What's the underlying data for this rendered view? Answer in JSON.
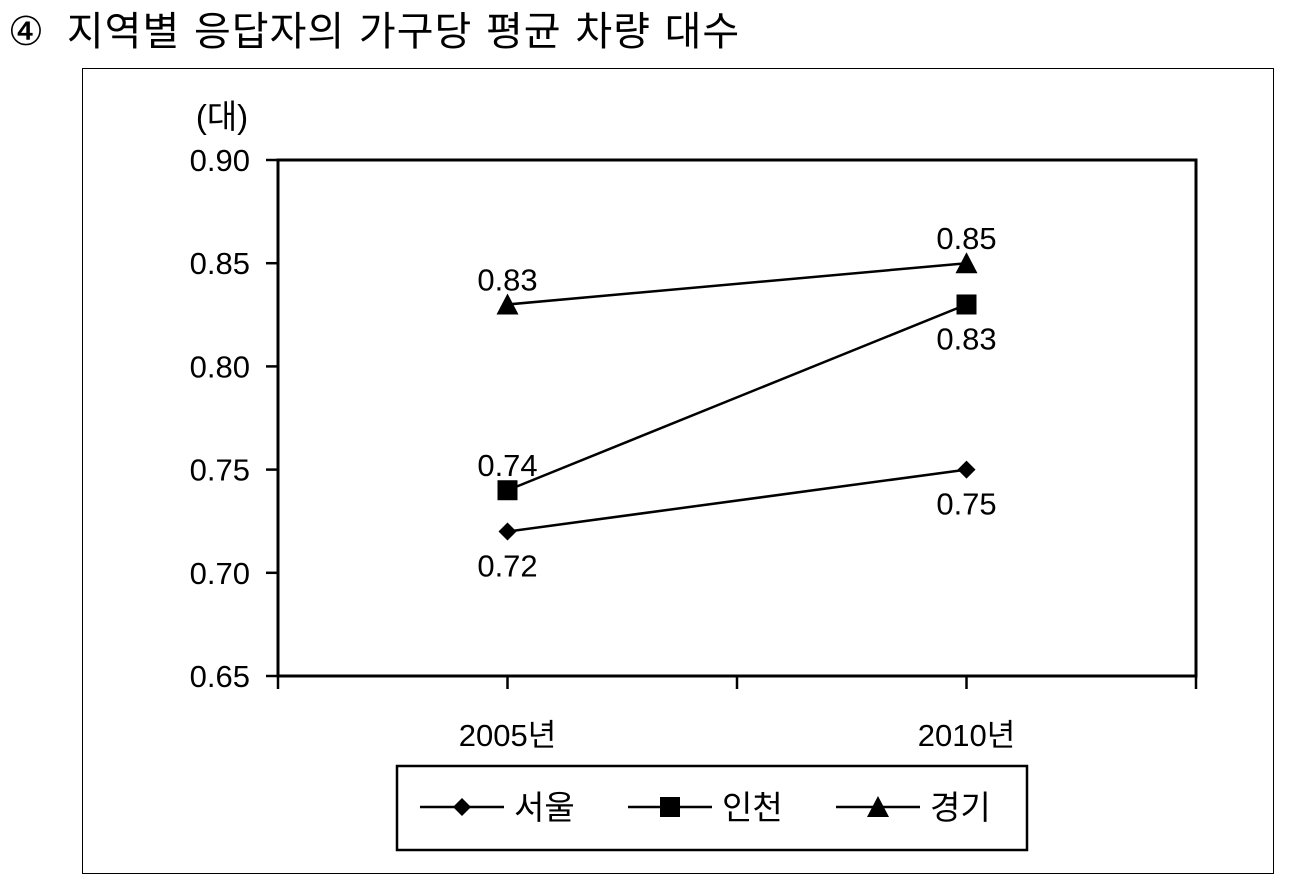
{
  "heading": {
    "number": "④",
    "text": "지역별 응답자의 가구당 평균 차량 대수"
  },
  "chart_data": {
    "type": "line",
    "title": "",
    "ylabel": "(대)",
    "xlabel": "",
    "categories": [
      "2005년",
      "2010년"
    ],
    "ylim": [
      0.65,
      0.9
    ],
    "yticks": [
      "0.65",
      "0.70",
      "0.75",
      "0.80",
      "0.85",
      "0.90"
    ],
    "grid": false,
    "legend_position": "bottom",
    "series": [
      {
        "name": "서울",
        "marker": "diamond",
        "values": [
          0.72,
          0.75
        ],
        "labels": [
          "0.72",
          "0.75"
        ],
        "label_side": [
          "below",
          "below"
        ]
      },
      {
        "name": "인천",
        "marker": "square",
        "values": [
          0.74,
          0.83
        ],
        "labels": [
          "0.74",
          "0.83"
        ],
        "label_side": [
          "above",
          "below"
        ]
      },
      {
        "name": "경기",
        "marker": "triangle",
        "values": [
          0.83,
          0.85
        ],
        "labels": [
          "0.83",
          "0.85"
        ],
        "label_side": [
          "above",
          "above"
        ]
      }
    ]
  }
}
